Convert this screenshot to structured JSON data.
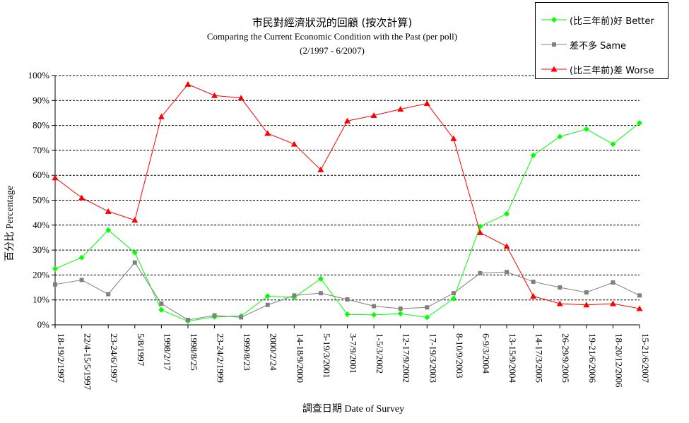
{
  "chart_data": {
    "type": "line",
    "title": "市民對經濟狀況的回顧 (按次計算)",
    "subtitle": "Comparing the Current Economic Condition with the Past  (per poll)",
    "period": "(2/1997 - 6/2007)",
    "xlabel": "調查日期 Date of Survey",
    "ylabel": "百分比 Percentage",
    "ylim": [
      0,
      100
    ],
    "yticks": [
      "0%",
      "10%",
      "20%",
      "30%",
      "40%",
      "50%",
      "60%",
      "70%",
      "80%",
      "90%",
      "100%"
    ],
    "grid": "horizontal dashed",
    "legend_position": "top-right",
    "categories": [
      "18-19/2/1997",
      "22/4-15/5/1997",
      "23-24/6/1997",
      "5/8/1997",
      "1998/2/17",
      "1998/8/25",
      "23-24/2/1999",
      "1999/8/23",
      "2000/2/24",
      "14-18/9/2000",
      "5-19/3/2001",
      "3-7/9/2001",
      "1-5/3/2002",
      "12-17/9/2002",
      "17-19/3/2003",
      "8-10/9/2003",
      "6-9/3/2004",
      "13-15/9/2004",
      "14-17/3/2005",
      "26-29/9/2005",
      "19-21/6/2006",
      "18-20/12/2006",
      "15-21/6/2007"
    ],
    "series": [
      {
        "name": "(比三年前)好 Better",
        "color": "#00ff00",
        "marker": "diamond",
        "values": [
          22.5,
          27,
          38,
          29,
          6,
          1.5,
          3.2,
          3.5,
          11.5,
          11,
          18.5,
          4.2,
          4,
          4.5,
          3,
          10.5,
          39.5,
          44.5,
          68,
          75.5,
          78.5,
          72.5,
          81
        ]
      },
      {
        "name": "差不多 Same",
        "color": "#808080",
        "marker": "square",
        "values": [
          16.2,
          18,
          12.3,
          25,
          8.5,
          2,
          3.8,
          3,
          8,
          11.8,
          12.7,
          10.2,
          7.5,
          6.5,
          7,
          12.7,
          20.7,
          21.2,
          17.3,
          15,
          13,
          17,
          11.8
        ]
      },
      {
        "name": "(比三年前)差 Worse",
        "color": "#ff0000",
        "marker": "triangle",
        "values": [
          59,
          51,
          45.5,
          42,
          83.5,
          96.5,
          92,
          91,
          76.8,
          72.5,
          62.2,
          81.8,
          84,
          86.5,
          88.8,
          74.7,
          37,
          31.5,
          11.5,
          8.5,
          8,
          8.5,
          6.5
        ]
      }
    ]
  }
}
